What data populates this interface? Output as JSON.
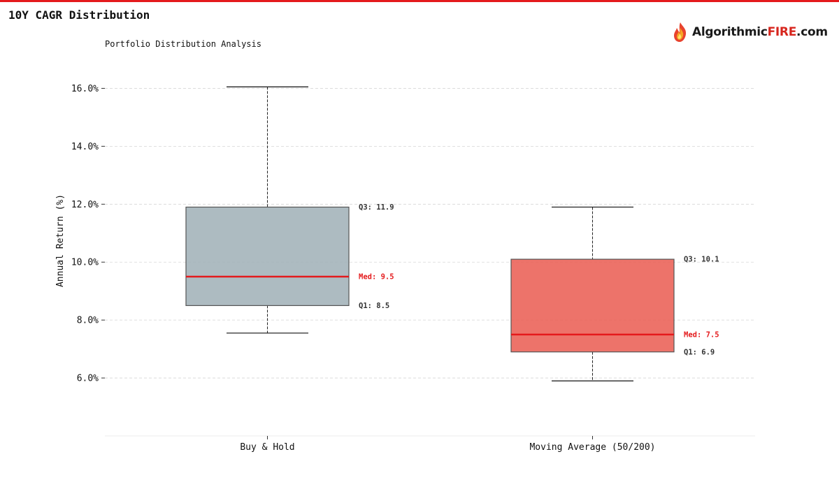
{
  "page": {
    "title": "10Y CAGR Distribution",
    "accent": "#e41a1c"
  },
  "logo": {
    "icon": "flame-icon",
    "text_part1": "Algorithmic",
    "text_part2": "FIRE",
    "text_part3": ".com"
  },
  "chart_data": {
    "type": "box",
    "subtitle": "Portfolio Distribution Analysis",
    "ylabel": "Annual Return (%)",
    "xlabel": "",
    "ylim": [
      4.0,
      17.0
    ],
    "yticks": [
      6.0,
      8.0,
      10.0,
      12.0,
      14.0,
      16.0
    ],
    "ytick_suffix": "%",
    "grid": true,
    "categories": [
      "Buy & Hold",
      "Moving Average (50/200)"
    ],
    "series": [
      {
        "category": "Buy & Hold",
        "whisker_low": 7.55,
        "q1": 8.5,
        "median": 9.5,
        "q3": 11.9,
        "whisker_high": 16.05,
        "fill": "#9fafb6",
        "labels": {
          "q3": "Q3: 11.9",
          "median": "Med: 9.5",
          "q1": "Q1: 8.5"
        }
      },
      {
        "category": "Moving Average (50/200)",
        "whisker_low": 5.9,
        "q1": 6.9,
        "median": 7.5,
        "q3": 10.1,
        "whisker_high": 11.9,
        "fill": "#ea5a50",
        "labels": {
          "q3": "Q3: 10.1",
          "median": "Med: 7.5",
          "q1": "Q1: 6.9"
        }
      }
    ],
    "median_color": "#e41a1c"
  }
}
